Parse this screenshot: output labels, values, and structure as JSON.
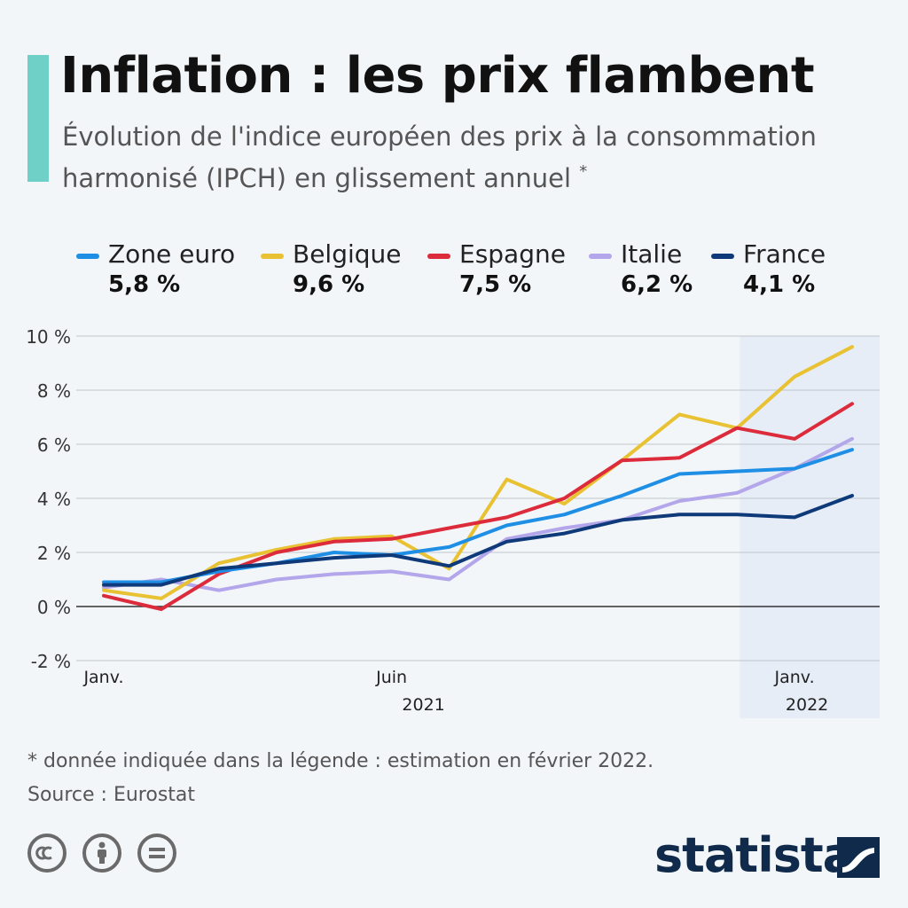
{
  "header": {
    "title": "Inflation : les prix flambent",
    "subtitle": "Évolution de l'indice européen des prix à la consommation harmonisé (IPCH) en glissement annuel",
    "subtitle_mark": "*"
  },
  "legend": [
    {
      "name": "Zone euro",
      "value": "5,8 %",
      "color": "#1f8fe5"
    },
    {
      "name": "Belgique",
      "value": "9,6 %",
      "color": "#e9c233"
    },
    {
      "name": "Espagne",
      "value": "7,5 %",
      "color": "#dc2b3a"
    },
    {
      "name": "Italie",
      "value": "6,2 %",
      "color": "#b3a6ea"
    },
    {
      "name": "France",
      "value": "4,1 %",
      "color": "#0f3a7a"
    }
  ],
  "chart_data": {
    "type": "line",
    "x": [
      "2021-01",
      "2021-02",
      "2021-03",
      "2021-04",
      "2021-05",
      "2021-06",
      "2021-07",
      "2021-08",
      "2021-09",
      "2021-10",
      "2021-11",
      "2021-12",
      "2022-01",
      "2022-02"
    ],
    "x_tick_labels": [
      {
        "month": "2021-01",
        "label": "Janv."
      },
      {
        "month": "2021-06",
        "label": "Juin"
      },
      {
        "month": "2022-01",
        "label": "Janv."
      }
    ],
    "year_labels": [
      {
        "month": "2021-06",
        "label": "2021"
      },
      {
        "month": "2022-01",
        "label": "2022"
      }
    ],
    "y_ticks": [
      {
        "value": 10,
        "label": "10 %"
      },
      {
        "value": 8,
        "label": "8 %"
      },
      {
        "value": 6,
        "label": "6 %"
      },
      {
        "value": 4,
        "label": "4 %"
      },
      {
        "value": 2,
        "label": "2 %"
      },
      {
        "value": 0,
        "label": "0 %"
      },
      {
        "value": -2,
        "label": "-2 %"
      }
    ],
    "ylim": [
      -2,
      10
    ],
    "grid": true,
    "legend_placement": "top",
    "highlight_range": [
      "2021-12",
      "2022-02"
    ],
    "highlight_color": "#e6edf6",
    "series": [
      {
        "name": "Italie",
        "color": "#b3a6ea",
        "values": [
          0.7,
          1.0,
          0.6,
          1.0,
          1.2,
          1.3,
          1.0,
          2.5,
          2.9,
          3.2,
          3.9,
          4.2,
          5.1,
          6.2
        ]
      },
      {
        "name": "Belgique",
        "color": "#e9c233",
        "values": [
          0.6,
          0.3,
          1.6,
          2.1,
          2.5,
          2.6,
          1.4,
          4.7,
          3.8,
          5.4,
          7.1,
          6.6,
          8.5,
          9.6
        ]
      },
      {
        "name": "Espagne",
        "color": "#dc2b3a",
        "values": [
          0.4,
          -0.1,
          1.2,
          2.0,
          2.4,
          2.5,
          2.9,
          3.3,
          4.0,
          5.4,
          5.5,
          6.6,
          6.2,
          7.5
        ]
      },
      {
        "name": "Zone euro",
        "color": "#1f8fe5",
        "values": [
          0.9,
          0.9,
          1.3,
          1.6,
          2.0,
          1.9,
          2.2,
          3.0,
          3.4,
          4.1,
          4.9,
          5.0,
          5.1,
          5.8
        ]
      },
      {
        "name": "France",
        "color": "#0f3a7a",
        "values": [
          0.8,
          0.8,
          1.4,
          1.6,
          1.8,
          1.9,
          1.5,
          2.4,
          2.7,
          3.2,
          3.4,
          3.4,
          3.3,
          4.1
        ]
      }
    ]
  },
  "footer": {
    "footnote": "* donnée indiquée dans la légende : estimation en février 2022.",
    "source": "Source : Eurostat",
    "license_icons": [
      "cc-icon",
      "attribution-icon",
      "no-derivatives-icon"
    ],
    "brand": "statista"
  }
}
